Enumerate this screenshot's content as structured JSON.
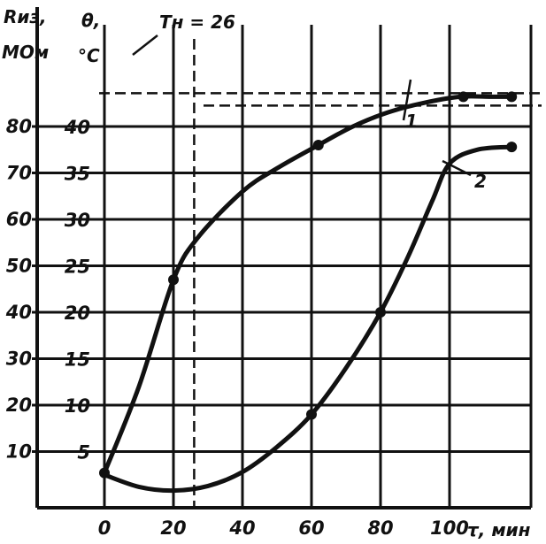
{
  "chart_data": {
    "type": "line",
    "x_axis": {
      "label": "τ, мин",
      "ticks": [
        "0",
        "20",
        "40",
        "60",
        "80",
        "100"
      ],
      "range": [
        0,
        130
      ]
    },
    "y_axis_left": {
      "label_line1": "Rиз,",
      "label_line2": "МОм",
      "ticks": [
        "10",
        "20",
        "30",
        "40",
        "50",
        "60",
        "70",
        "80"
      ],
      "range": [
        0,
        90
      ]
    },
    "y_axis_right": {
      "label_line1": "θ,",
      "label_line2": "°C",
      "ticks": [
        "5",
        "10",
        "15",
        "20",
        "25",
        "30",
        "35",
        "40"
      ],
      "range": [
        0,
        45
      ]
    },
    "annotation": "Tн = 26",
    "series": [
      {
        "id": "1",
        "label": "1",
        "axis": "right",
        "points": [
          [
            0,
            2.7
          ],
          [
            10,
            12
          ],
          [
            20,
            23.5
          ],
          [
            27,
            28
          ],
          [
            40,
            33
          ],
          [
            50,
            35.5
          ],
          [
            62,
            38
          ],
          [
            72,
            40
          ],
          [
            82,
            41.5
          ],
          [
            92,
            42.5
          ],
          [
            103,
            43.2
          ],
          [
            112,
            43.2
          ],
          [
            118,
            43.2
          ]
        ]
      },
      {
        "id": "2",
        "label": "2",
        "axis": "right",
        "points": [
          [
            0,
            2.5
          ],
          [
            10,
            1.2
          ],
          [
            20,
            0.8
          ],
          [
            30,
            1.3
          ],
          [
            40,
            2.8
          ],
          [
            50,
            5.5
          ],
          [
            60,
            9
          ],
          [
            70,
            14
          ],
          [
            80,
            20
          ],
          [
            88,
            26
          ],
          [
            95,
            32
          ],
          [
            100,
            36
          ],
          [
            108,
            37.5
          ],
          [
            118,
            37.8
          ]
        ]
      }
    ],
    "markers": [
      {
        "series": "1",
        "x": 0,
        "y": 2.7
      },
      {
        "series": "1",
        "x": 20,
        "y": 23.5
      },
      {
        "series": "1",
        "x": 62,
        "y": 38
      },
      {
        "series": "1",
        "x": 104,
        "y": 43.2
      },
      {
        "series": "1",
        "x": 118,
        "y": 43.2
      },
      {
        "series": "2",
        "x": 80,
        "y": 20
      },
      {
        "series": "2",
        "x": 60,
        "y": 9
      },
      {
        "series": "2",
        "x": 118,
        "y": 37.8
      }
    ],
    "grid": true,
    "dashed_level_y": 43.2,
    "dashed_vertical_x": 26
  }
}
